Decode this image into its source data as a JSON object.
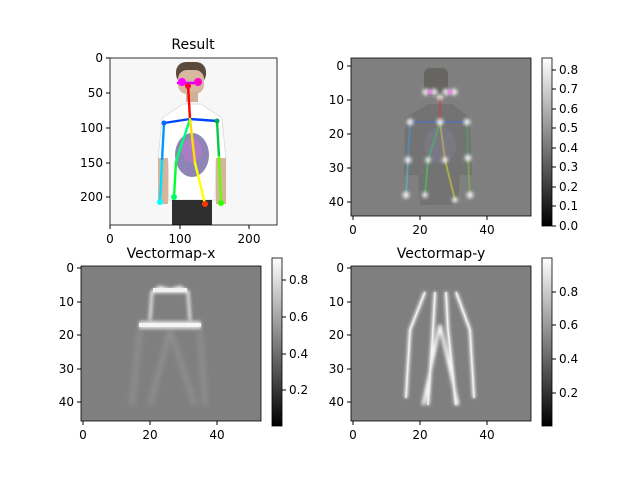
{
  "panels": [
    {
      "title": "Result",
      "image": "pose-estimation-result-photo",
      "xlim": [
        0,
        240
      ],
      "ylim": [
        240,
        0
      ],
      "xticks": [
        "0",
        "100",
        "200"
      ],
      "xtick_values": [
        0,
        100,
        200
      ],
      "yticks": [
        "0",
        "50",
        "100",
        "150",
        "200"
      ],
      "ytick_values": [
        0,
        50,
        100,
        150,
        200
      ],
      "colorbar": null
    },
    {
      "title": "",
      "image": "heatmap-overlay",
      "xlim": [
        0,
        54
      ],
      "ylim": [
        46,
        0
      ],
      "xticks": [
        "0",
        "20",
        "40"
      ],
      "xtick_values": [
        0,
        20,
        40
      ],
      "yticks": [
        "0",
        "10",
        "20",
        "30",
        "40"
      ],
      "ytick_values": [
        0,
        10,
        20,
        30,
        40
      ],
      "colorbar": {
        "range": [
          0.0,
          0.86
        ],
        "ticks": [
          "0.0",
          "0.1",
          "0.2",
          "0.3",
          "0.4",
          "0.5",
          "0.6",
          "0.7",
          "0.8"
        ],
        "tick_values": [
          0.0,
          0.1,
          0.2,
          0.3,
          0.4,
          0.5,
          0.6,
          0.7,
          0.8
        ]
      }
    },
    {
      "title": "Vectormap-x",
      "image": "vectormap-x",
      "xlim": [
        0,
        54
      ],
      "ylim": [
        46,
        0
      ],
      "xticks": [
        "0",
        "20",
        "40"
      ],
      "xtick_values": [
        0,
        20,
        40
      ],
      "yticks": [
        "0",
        "10",
        "20",
        "30",
        "40"
      ],
      "ytick_values": [
        0,
        10,
        20,
        30,
        40
      ],
      "colorbar": {
        "range": [
          0.0,
          0.92
        ],
        "ticks": [
          "0.2",
          "0.4",
          "0.6",
          "0.8"
        ],
        "tick_values": [
          0.2,
          0.4,
          0.6,
          0.8
        ]
      }
    },
    {
      "title": "Vectormap-y",
      "image": "vectormap-y",
      "xlim": [
        0,
        54
      ],
      "ylim": [
        46,
        0
      ],
      "xticks": [
        "0",
        "20",
        "40"
      ],
      "xtick_values": [
        0,
        20,
        40
      ],
      "yticks": [
        "0",
        "10",
        "20",
        "30",
        "40"
      ],
      "ytick_values": [
        0,
        10,
        20,
        30,
        40
      ],
      "colorbar": {
        "range": [
          0.0,
          1.0
        ],
        "ticks": [
          "0.2",
          "0.4",
          "0.6",
          "0.8"
        ],
        "tick_values": [
          0.2,
          0.4,
          0.6,
          0.8
        ]
      }
    }
  ],
  "chart_data": [
    {
      "type": "heatmap",
      "title": "Result",
      "xlim": [
        0,
        240
      ],
      "ylim": [
        240,
        0
      ],
      "keypoints": [
        {
          "name": "nose",
          "x": 118,
          "y": 27
        },
        {
          "name": "neck",
          "x": 118,
          "y": 87
        },
        {
          "name": "right-shoulder",
          "x": 80,
          "y": 89
        },
        {
          "name": "right-elbow",
          "x": 76,
          "y": 145
        },
        {
          "name": "right-wrist",
          "x": 74,
          "y": 202
        },
        {
          "name": "left-shoulder",
          "x": 160,
          "y": 88
        },
        {
          "name": "left-elbow",
          "x": 162,
          "y": 140
        },
        {
          "name": "left-wrist",
          "x": 166,
          "y": 203
        },
        {
          "name": "right-hip",
          "x": 98,
          "y": 150
        },
        {
          "name": "right-knee",
          "x": 93,
          "y": 197
        },
        {
          "name": "left-hip",
          "x": 125,
          "y": 150
        },
        {
          "name": "left-knee",
          "x": 138,
          "y": 206
        }
      ]
    },
    {
      "type": "heatmap",
      "xlim": [
        0,
        54
      ],
      "ylim": [
        46,
        0
      ],
      "colorbar_range": [
        0.0,
        0.86
      ]
    },
    {
      "type": "heatmap",
      "title": "Vectormap-x",
      "xlim": [
        0,
        54
      ],
      "ylim": [
        46,
        0
      ],
      "colorbar_range": [
        0.0,
        0.92
      ]
    },
    {
      "type": "heatmap",
      "title": "Vectormap-y",
      "xlim": [
        0,
        54
      ],
      "ylim": [
        46,
        0
      ],
      "colorbar_range": [
        0.0,
        1.0
      ]
    }
  ],
  "colors": {
    "neutral_gray": "#7f7f7f",
    "bright": "#ffffff",
    "dark": "#303030"
  }
}
